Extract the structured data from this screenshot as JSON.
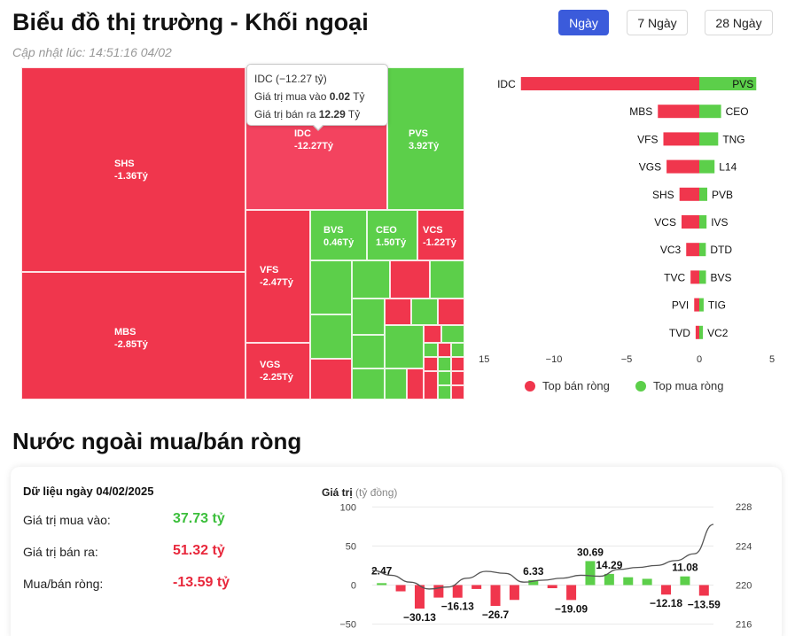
{
  "header": {
    "title": "Biểu đồ thị trường - Khối ngoại",
    "updated": "Cập nhật lúc: 14:51:16 04/02",
    "tabs": [
      {
        "label": "Ngày",
        "active": true
      },
      {
        "label": "7 Ngày",
        "active": false
      },
      {
        "label": "28 Ngày",
        "active": false
      }
    ]
  },
  "treemap": {
    "tiles": [
      {
        "symbol": "SHS",
        "value": "-1.36Tỷ"
      },
      {
        "symbol": "MBS",
        "value": "-2.85Tỷ"
      },
      {
        "symbol": "IDC",
        "value": "-12.27Tỷ"
      },
      {
        "symbol": "PVS",
        "value": "3.92Tỷ"
      },
      {
        "symbol": "VFS",
        "value": "-2.47Tỷ"
      },
      {
        "symbol": "VGS",
        "value": "-2.25Tỷ"
      },
      {
        "symbol": "BVS",
        "value": "0.46Tỷ"
      },
      {
        "symbol": "CEO",
        "value": "1.50Tỷ"
      },
      {
        "symbol": "VCS",
        "value": "-1.22Tỷ"
      }
    ],
    "tooltip": {
      "title": "IDC (−12.27 tỷ)",
      "buy_label": "Giá trị mua vào",
      "buy_value": "0.02",
      "sell_label": "Giá trị bán ra",
      "sell_value": "12.29",
      "unit": "Tỷ"
    }
  },
  "chart_data": [
    {
      "type": "bar",
      "orientation": "horizontal",
      "sell_symbols": [
        "IDC",
        "MBS",
        "VFS",
        "VGS",
        "SHS",
        "VCS",
        "VC3",
        "TVC",
        "PVI",
        "TVD"
      ],
      "sell_values": [
        -12.27,
        -2.85,
        -2.47,
        -2.25,
        -1.36,
        -1.22,
        -0.9,
        -0.6,
        -0.35,
        -0.25
      ],
      "buy_symbols": [
        "PVS",
        "CEO",
        "TNG",
        "L14",
        "PVB",
        "IVS",
        "DTD",
        "BVS",
        "TIG",
        "VC2"
      ],
      "buy_values": [
        3.92,
        1.5,
        1.3,
        1.05,
        0.55,
        0.5,
        0.45,
        0.46,
        0.3,
        0.25
      ],
      "xlim": [
        -15,
        5
      ],
      "xticks": [
        "−15",
        "−10",
        "−5",
        "0",
        "5"
      ],
      "legend": [
        {
          "name": "Top bán ròng",
          "color": "#f0364d"
        },
        {
          "name": "Top mua ròng",
          "color": "#5ccf4a"
        }
      ],
      "legend_position": "bottom"
    },
    {
      "type": "bar",
      "title": "Giá trị",
      "subtitle": "(tỷ đồng)",
      "values": [
        2.47,
        -30.13,
        -16.13,
        -26.7,
        6.33,
        -19.09,
        30.69,
        14.29,
        -12.18,
        11.08,
        -13.59
      ],
      "all_values": [
        2.47,
        -8,
        -30.13,
        -16,
        -16.13,
        -5,
        -26.7,
        -19,
        6.33,
        -4,
        -19.09,
        30.69,
        14.29,
        10,
        8,
        -12.18,
        11.08,
        -13.59
      ],
      "labels": [
        "2.47",
        "−30.13",
        "−16.13",
        "−26.7",
        "6.33",
        "−19.09",
        "30.69",
        "14.29",
        "−12.18",
        "11.08",
        "−13.59"
      ],
      "ylim": [
        -50,
        100
      ],
      "yticks_left": [
        "100",
        "50",
        "0",
        "−50"
      ],
      "y2lim": [
        216,
        228
      ],
      "yticks_right": [
        "228",
        "224",
        "220",
        "216"
      ],
      "line": [
        221.5,
        221.0,
        220.3,
        219.6,
        219.8,
        220.7,
        221.4,
        221.2,
        220.3,
        220.5,
        220.7,
        221.0,
        220.9,
        221.6,
        221.8,
        222.0,
        222.5,
        223.2,
        226.2
      ]
    }
  ],
  "stats": {
    "date_label": "Dữ liệu ngày 04/02/2025",
    "buy_label": "Giá trị mua vào:",
    "buy_value": "37.73 tỷ",
    "sell_label": "Giá trị bán ra:",
    "sell_value": "51.32 tỷ",
    "net_label": "Mua/bán ròng:",
    "net_value": "-13.59 tỷ"
  },
  "section_title": "Nước ngoài mua/bán ròng",
  "colors": {
    "sell": "#f0364d",
    "buy": "#5ccf4a",
    "accent": "#3b5bdb"
  }
}
